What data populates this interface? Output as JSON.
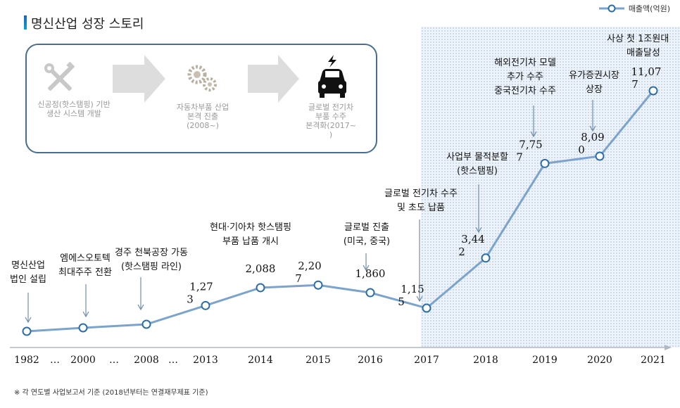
{
  "header": {
    "title": "명신산업 성장 스토리"
  },
  "legend": {
    "label": "매출액(억원)"
  },
  "story": {
    "steps": [
      {
        "icon": "tools-icon",
        "line1": "신공정(핫스탬핑) 기반",
        "line2": "생산 시스템 개발",
        "line3": ""
      },
      {
        "icon": "gears-icon",
        "line1": "자동차부품 산업",
        "line2": "본격 진출",
        "line3": "(2008~)"
      },
      {
        "icon": "electric-car-icon",
        "line1": "글로벌 전기차",
        "line2": "부품 수주",
        "line3": "본격화(2017~",
        "line4": ")"
      }
    ]
  },
  "annotations": {
    "a1982": {
      "l1": "명신산업",
      "l2": "법인 설립"
    },
    "a2000": {
      "l1": "엠에스오토텍",
      "l2": "최대주주 전환"
    },
    "a2008": {
      "l1": "경주 천북공장 가동",
      "l2": "(핫스탬핑 라인)"
    },
    "a2014": {
      "l1": "현대·기아차 핫스탬핑",
      "l2": "부품 납품 개시"
    },
    "a2016": {
      "l1": "글로벌 진출",
      "l2": "(미국, 중국)"
    },
    "a2017": {
      "l1": "글로벌 전기차 수주",
      "l2": "및 초도 납품"
    },
    "a2018": {
      "l1": "사업부 물적분할",
      "l2": "(핫스탬핑)"
    },
    "a2019": {
      "l1": "해외전기차 모델",
      "l2": "추가 수주",
      "l3": "중국전기차 수주"
    },
    "a2020": {
      "l1": "유가증권시장",
      "l2": "상장"
    },
    "a2021": {
      "l1": "사상 첫 1조원대",
      "l2": "매출달성"
    }
  },
  "footnote": "※ 각 연도별 사업보고서 기준 (2018년부터는 연결재무제표 기준)",
  "colors": {
    "line": "#7ba3cc",
    "marker": "#2d6ea8",
    "shade": "#eef3fa",
    "box_border": "#4a6d8c",
    "title_accent": "#1a66b8"
  },
  "chart_data": {
    "type": "line",
    "series": [
      {
        "name": "매출액(억원)"
      }
    ],
    "categories": [
      "1982",
      "…",
      "2000",
      "…",
      "2008",
      "…",
      "2013",
      "2014",
      "2015",
      "2016",
      "2017",
      "2018",
      "2019",
      "2020",
      "2021"
    ],
    "points": [
      {
        "x": "1982",
        "y": null,
        "label_l1": "",
        "label_l2": ""
      },
      {
        "x": "2000",
        "y": null,
        "label_l1": "",
        "label_l2": ""
      },
      {
        "x": "2008",
        "y": null,
        "label_l1": "",
        "label_l2": ""
      },
      {
        "x": "2013",
        "y": 1273,
        "label_l1": "1,27",
        "label_l2": "3"
      },
      {
        "x": "2014",
        "y": 2088,
        "label_l1": "2,088",
        "label_l2": ""
      },
      {
        "x": "2015",
        "y": 2207,
        "label_l1": "2,20",
        "label_l2": "7"
      },
      {
        "x": "2016",
        "y": 1860,
        "label_l1": "1,860",
        "label_l2": ""
      },
      {
        "x": "2017",
        "y": 1155,
        "label_l1": "1,15",
        "label_l2": "5"
      },
      {
        "x": "2018",
        "y": 3442,
        "label_l1": "3,44",
        "label_l2": "2"
      },
      {
        "x": "2019",
        "y": 7757,
        "label_l1": "7,75",
        "label_l2": "7"
      },
      {
        "x": "2020",
        "y": 8090,
        "label_l1": "8,09",
        "label_l2": "0"
      },
      {
        "x": "2021",
        "y": 11077,
        "label_l1": "11,07",
        "label_l2": "7"
      }
    ]
  }
}
